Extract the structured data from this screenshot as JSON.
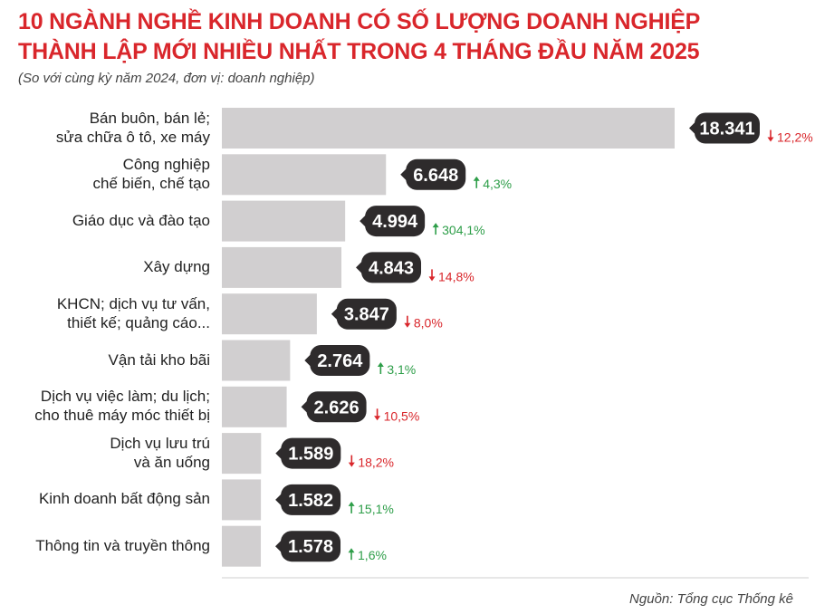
{
  "header": {
    "title_line1": "10 NGÀNH NGHỀ KINH DOANH CÓ SỐ LƯỢNG DOANH NGHIỆP",
    "title_line2": "THÀNH LẬP MỚI NHIỀU NHẤT TRONG 4 THÁNG ĐẦU NĂM 2025",
    "subtitle": "(So với cùng kỳ năm 2024, đơn vị: doanh nghiệp)"
  },
  "footer": {
    "source": "Nguồn: Tổng cục Thống kê"
  },
  "colors": {
    "bar": "#d1cfd0",
    "bubble": "#2e2b2c",
    "up": "#2e9e49",
    "down": "#d9262b",
    "title": "#d9262b"
  },
  "chart_data": {
    "type": "bar",
    "orientation": "horizontal",
    "title": "10 NGÀNH NGHỀ KINH DOANH CÓ SỐ LƯỢNG DOANH NGHIỆP THÀNH LẬP MỚI NHIỀU NHẤT TRONG 4 THÁNG ĐẦU NĂM 2025",
    "subtitle": "(So với cùng kỳ năm 2024, đơn vị: doanh nghiệp)",
    "categories": [
      [
        "Bán buôn, bán lẻ;",
        "sửa chữa ô tô, xe máy"
      ],
      [
        "Công nghiệp",
        "chế biến, chế tạo"
      ],
      [
        "Giáo dục và đào tạo"
      ],
      [
        "Xây dựng"
      ],
      [
        "KHCN; dịch vụ tư vấn,",
        "thiết kế; quảng cáo..."
      ],
      [
        "Vận tải kho bãi"
      ],
      [
        "Dịch vụ việc làm; du lịch;",
        "cho thuê máy móc thiết bị"
      ],
      [
        "Dịch vụ lưu trú",
        "và ăn uống"
      ],
      [
        "Kinh doanh bất động sản"
      ],
      [
        "Thông tin và truyền thông"
      ]
    ],
    "values": [
      18341,
      6648,
      4994,
      4843,
      3847,
      2764,
      2626,
      1589,
      1582,
      1578
    ],
    "value_labels": [
      "18.341",
      "6.648",
      "4.994",
      "4.843",
      "3.847",
      "2.764",
      "2.626",
      "1.589",
      "1.582",
      "1.578"
    ],
    "changes": [
      {
        "direction": "down",
        "label": "12,2%"
      },
      {
        "direction": "up",
        "label": "4,3%"
      },
      {
        "direction": "up",
        "label": "304,1%"
      },
      {
        "direction": "down",
        "label": "14,8%"
      },
      {
        "direction": "down",
        "label": "8,0%"
      },
      {
        "direction": "up",
        "label": "3,1%"
      },
      {
        "direction": "down",
        "label": "10,5%"
      },
      {
        "direction": "down",
        "label": "18,2%"
      },
      {
        "direction": "up",
        "label": "15,1%"
      },
      {
        "direction": "up",
        "label": "1,6%"
      }
    ],
    "xlim": [
      0,
      18341
    ],
    "grid": false,
    "legend": "none"
  }
}
